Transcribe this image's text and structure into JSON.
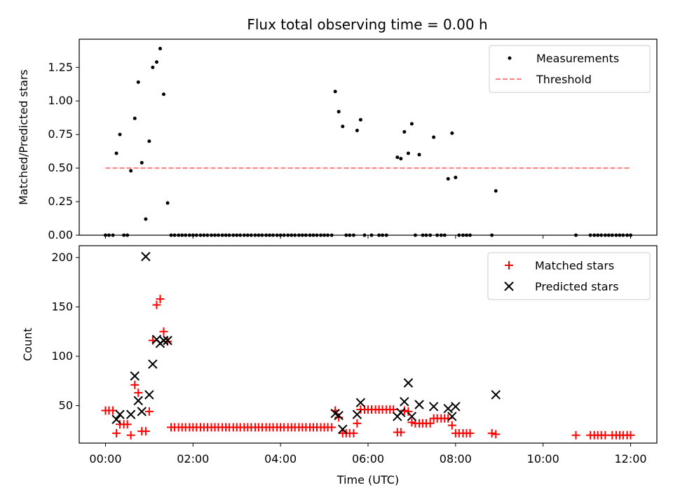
{
  "title": "Flux total observing time = 0.00 h",
  "xlabel": "Time (UTC)",
  "x_tick_labels": [
    "00:00",
    "02:00",
    "04:00",
    "06:00",
    "08:00",
    "10:00",
    "12:00"
  ],
  "colors": {
    "measurements": "#000000",
    "threshold": "#ff7f7f",
    "matched": "#ff0000",
    "predicted": "#000000"
  },
  "chart_data": [
    {
      "type": "scatter",
      "ylabel": "Matched/Predicted stars",
      "xlim": [
        -0.6,
        12.6
      ],
      "ylim": [
        0,
        1.46
      ],
      "y_ticks": [
        0,
        0.25,
        0.5,
        0.75,
        1.0,
        1.25
      ],
      "y_tick_labels": [
        "0.00",
        "0.25",
        "0.50",
        "0.75",
        "1.00",
        "1.25"
      ],
      "legend_position": "top-right",
      "threshold": {
        "name": "Threshold",
        "y": 0.5,
        "x": [
          0,
          12
        ]
      },
      "series": [
        {
          "name": "Measurements",
          "marker": "dot",
          "points": [
            [
              0,
              0
            ],
            [
              0.08,
              0
            ],
            [
              0.17,
              0
            ],
            [
              0.25,
              0.61
            ],
            [
              0.33,
              0.75
            ],
            [
              0.42,
              0
            ],
            [
              0.5,
              0
            ],
            [
              0.58,
              0.48
            ],
            [
              0.67,
              0.87
            ],
            [
              0.75,
              1.14
            ],
            [
              0.83,
              0.54
            ],
            [
              0.92,
              0.12
            ],
            [
              1.0,
              0.7
            ],
            [
              1.08,
              1.25
            ],
            [
              1.17,
              1.29
            ],
            [
              1.25,
              1.39
            ],
            [
              1.33,
              1.05
            ],
            [
              1.42,
              0.24
            ],
            [
              1.5,
              0
            ],
            [
              1.58,
              0
            ],
            [
              1.67,
              0
            ],
            [
              1.75,
              0
            ],
            [
              1.83,
              0
            ],
            [
              1.92,
              0
            ],
            [
              2.0,
              0
            ],
            [
              2.08,
              0
            ],
            [
              2.17,
              0
            ],
            [
              2.25,
              0
            ],
            [
              2.33,
              0
            ],
            [
              2.42,
              0
            ],
            [
              2.5,
              0
            ],
            [
              2.58,
              0
            ],
            [
              2.67,
              0
            ],
            [
              2.75,
              0
            ],
            [
              2.83,
              0
            ],
            [
              2.92,
              0
            ],
            [
              3.0,
              0
            ],
            [
              3.08,
              0
            ],
            [
              3.17,
              0
            ],
            [
              3.25,
              0
            ],
            [
              3.33,
              0
            ],
            [
              3.42,
              0
            ],
            [
              3.5,
              0
            ],
            [
              3.58,
              0
            ],
            [
              3.67,
              0
            ],
            [
              3.75,
              0
            ],
            [
              3.83,
              0
            ],
            [
              3.92,
              0
            ],
            [
              4.0,
              0
            ],
            [
              4.08,
              0
            ],
            [
              4.17,
              0
            ],
            [
              4.25,
              0
            ],
            [
              4.33,
              0
            ],
            [
              4.42,
              0
            ],
            [
              4.5,
              0
            ],
            [
              4.58,
              0
            ],
            [
              4.67,
              0
            ],
            [
              4.75,
              0
            ],
            [
              4.83,
              0
            ],
            [
              4.92,
              0
            ],
            [
              5.0,
              0
            ],
            [
              5.08,
              0
            ],
            [
              5.17,
              0
            ],
            [
              5.25,
              1.07
            ],
            [
              5.33,
              0.92
            ],
            [
              5.42,
              0.81
            ],
            [
              5.5,
              0
            ],
            [
              5.58,
              0
            ],
            [
              5.67,
              0
            ],
            [
              5.75,
              0.78
            ],
            [
              5.83,
              0.86
            ],
            [
              5.92,
              0
            ],
            [
              6.08,
              0
            ],
            [
              6.25,
              0
            ],
            [
              6.33,
              0
            ],
            [
              6.42,
              0
            ],
            [
              6.67,
              0.58
            ],
            [
              6.75,
              0.57
            ],
            [
              6.83,
              0.77
            ],
            [
              6.92,
              0.61
            ],
            [
              7.0,
              0.83
            ],
            [
              7.08,
              0
            ],
            [
              7.17,
              0.6
            ],
            [
              7.25,
              0
            ],
            [
              7.33,
              0
            ],
            [
              7.42,
              0
            ],
            [
              7.5,
              0.73
            ],
            [
              7.58,
              0
            ],
            [
              7.67,
              0
            ],
            [
              7.75,
              0
            ],
            [
              7.83,
              0.42
            ],
            [
              7.92,
              0.76
            ],
            [
              8.0,
              0.43
            ],
            [
              8.08,
              0
            ],
            [
              8.17,
              0
            ],
            [
              8.25,
              0
            ],
            [
              8.33,
              0
            ],
            [
              8.83,
              0
            ],
            [
              8.92,
              0.33
            ],
            [
              10.75,
              0
            ],
            [
              11.08,
              0
            ],
            [
              11.17,
              0
            ],
            [
              11.25,
              0
            ],
            [
              11.33,
              0
            ],
            [
              11.42,
              0
            ],
            [
              11.5,
              0
            ],
            [
              11.58,
              0
            ],
            [
              11.67,
              0
            ],
            [
              11.75,
              0
            ],
            [
              11.83,
              0
            ],
            [
              11.92,
              0
            ],
            [
              12.0,
              0
            ]
          ]
        }
      ]
    },
    {
      "type": "scatter",
      "ylabel": "Count",
      "xlim": [
        -0.6,
        12.6
      ],
      "ylim": [
        12,
        212
      ],
      "y_ticks": [
        50,
        100,
        150,
        200
      ],
      "y_tick_labels": [
        "50",
        "100",
        "150",
        "200"
      ],
      "legend_position": "top-right",
      "series": [
        {
          "name": "Matched stars",
          "marker": "plus",
          "points": [
            [
              0,
              45
            ],
            [
              0.08,
              45
            ],
            [
              0.17,
              45
            ],
            [
              0.25,
              22
            ],
            [
              0.33,
              31
            ],
            [
              0.42,
              31
            ],
            [
              0.5,
              31
            ],
            [
              0.58,
              20
            ],
            [
              0.67,
              71
            ],
            [
              0.75,
              63
            ],
            [
              0.83,
              24
            ],
            [
              0.92,
              24
            ],
            [
              1.0,
              44
            ],
            [
              1.08,
              116
            ],
            [
              1.17,
              152
            ],
            [
              1.25,
              158
            ],
            [
              1.33,
              125
            ],
            [
              1.42,
              115
            ],
            [
              1.5,
              28
            ],
            [
              1.58,
              28
            ],
            [
              1.67,
              28
            ],
            [
              1.75,
              28
            ],
            [
              1.83,
              28
            ],
            [
              1.92,
              28
            ],
            [
              2.0,
              28
            ],
            [
              2.08,
              28
            ],
            [
              2.17,
              28
            ],
            [
              2.25,
              28
            ],
            [
              2.33,
              28
            ],
            [
              2.42,
              28
            ],
            [
              2.5,
              28
            ],
            [
              2.58,
              28
            ],
            [
              2.67,
              28
            ],
            [
              2.75,
              28
            ],
            [
              2.83,
              28
            ],
            [
              2.92,
              28
            ],
            [
              3.0,
              28
            ],
            [
              3.08,
              28
            ],
            [
              3.17,
              28
            ],
            [
              3.25,
              28
            ],
            [
              3.33,
              28
            ],
            [
              3.42,
              28
            ],
            [
              3.5,
              28
            ],
            [
              3.58,
              28
            ],
            [
              3.67,
              28
            ],
            [
              3.75,
              28
            ],
            [
              3.83,
              28
            ],
            [
              3.92,
              28
            ],
            [
              4.0,
              28
            ],
            [
              4.08,
              28
            ],
            [
              4.17,
              28
            ],
            [
              4.25,
              28
            ],
            [
              4.33,
              28
            ],
            [
              4.42,
              28
            ],
            [
              4.5,
              28
            ],
            [
              4.58,
              28
            ],
            [
              4.67,
              28
            ],
            [
              4.75,
              28
            ],
            [
              4.83,
              28
            ],
            [
              4.92,
              28
            ],
            [
              5.0,
              28
            ],
            [
              5.08,
              28
            ],
            [
              5.17,
              28
            ],
            [
              5.25,
              45
            ],
            [
              5.33,
              38
            ],
            [
              5.42,
              22
            ],
            [
              5.5,
              22
            ],
            [
              5.58,
              22
            ],
            [
              5.67,
              22
            ],
            [
              5.75,
              32
            ],
            [
              5.83,
              46
            ],
            [
              5.92,
              46
            ],
            [
              6.0,
              46
            ],
            [
              6.08,
              46
            ],
            [
              6.17,
              46
            ],
            [
              6.25,
              46
            ],
            [
              6.33,
              46
            ],
            [
              6.42,
              46
            ],
            [
              6.5,
              46
            ],
            [
              6.58,
              46
            ],
            [
              6.67,
              23
            ],
            [
              6.75,
              23
            ],
            [
              6.83,
              45
            ],
            [
              6.92,
              44
            ],
            [
              7.0,
              33
            ],
            [
              7.08,
              32
            ],
            [
              7.17,
              32
            ],
            [
              7.25,
              32
            ],
            [
              7.33,
              32
            ],
            [
              7.42,
              32
            ],
            [
              7.5,
              37
            ],
            [
              7.58,
              37
            ],
            [
              7.67,
              37
            ],
            [
              7.75,
              37
            ],
            [
              7.83,
              37
            ],
            [
              7.92,
              30
            ],
            [
              8.0,
              22
            ],
            [
              8.08,
              22
            ],
            [
              8.17,
              22
            ],
            [
              8.25,
              22
            ],
            [
              8.33,
              22
            ],
            [
              8.83,
              22
            ],
            [
              8.92,
              21
            ],
            [
              10.75,
              20
            ],
            [
              11.08,
              20
            ],
            [
              11.17,
              20
            ],
            [
              11.25,
              20
            ],
            [
              11.33,
              20
            ],
            [
              11.42,
              20
            ],
            [
              11.58,
              20
            ],
            [
              11.67,
              20
            ],
            [
              11.75,
              20
            ],
            [
              11.83,
              20
            ],
            [
              11.92,
              20
            ],
            [
              12.0,
              20
            ]
          ]
        },
        {
          "name": "Predicted stars",
          "marker": "x",
          "points": [
            [
              0.25,
              36
            ],
            [
              0.33,
              41
            ],
            [
              0.58,
              41
            ],
            [
              0.67,
              80
            ],
            [
              0.75,
              55
            ],
            [
              0.83,
              44
            ],
            [
              0.92,
              201
            ],
            [
              1.0,
              61
            ],
            [
              1.08,
              92
            ],
            [
              1.17,
              117
            ],
            [
              1.25,
              113
            ],
            [
              1.33,
              116
            ],
            [
              1.42,
              116
            ],
            [
              5.25,
              42
            ],
            [
              5.33,
              40
            ],
            [
              5.42,
              26
            ],
            [
              5.75,
              41
            ],
            [
              5.83,
              53
            ],
            [
              6.67,
              39
            ],
            [
              6.75,
              43
            ],
            [
              6.83,
              54
            ],
            [
              6.92,
              73
            ],
            [
              7.0,
              39
            ],
            [
              7.17,
              51
            ],
            [
              7.5,
              49
            ],
            [
              7.83,
              47
            ],
            [
              7.92,
              39
            ],
            [
              8.0,
              49
            ],
            [
              8.92,
              61
            ]
          ]
        }
      ]
    }
  ]
}
